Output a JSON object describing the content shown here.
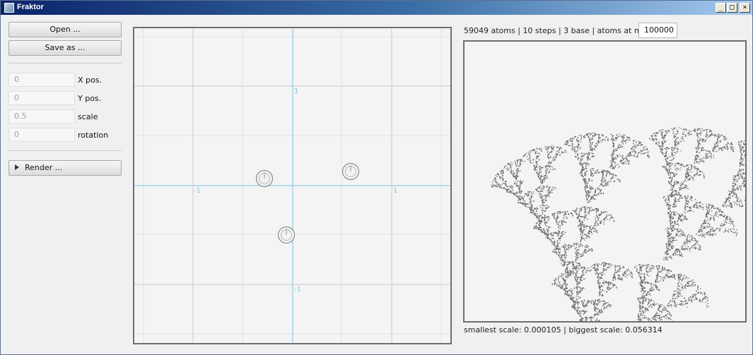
{
  "window": {
    "title": "Fraktor",
    "buttons": {
      "minimize": "_",
      "maximize": "□",
      "close": "×"
    }
  },
  "left_panel": {
    "open_label": "Open ...",
    "save_label": "Save as ...",
    "fields": [
      {
        "name": "x-pos",
        "value": "0",
        "label": "X pos."
      },
      {
        "name": "y-pos",
        "value": "0",
        "label": "Y pos."
      },
      {
        "name": "scale",
        "value": "0.5",
        "label": "scale"
      },
      {
        "name": "rotation",
        "value": "0",
        "label": "rotation"
      }
    ],
    "render_label": "Render ..."
  },
  "editor": {
    "axis_labels": {
      "x_pos": "1",
      "x_neg": "-1",
      "y_pos": "1",
      "y_neg": "-1"
    },
    "axis_color": "#7ec4e6",
    "grid_color": "#c8c8c8"
  },
  "stats": {
    "atoms": "59049 atoms",
    "steps": "10 steps",
    "base": "3 base",
    "max_label": "atoms at most:",
    "max_value": "100000",
    "smallest_scale": "smallest scale: 0.000105",
    "biggest_scale": "biggest scale: 0.056314"
  },
  "colors": {
    "fractal": "#666666",
    "border": "#6e6e6e"
  }
}
